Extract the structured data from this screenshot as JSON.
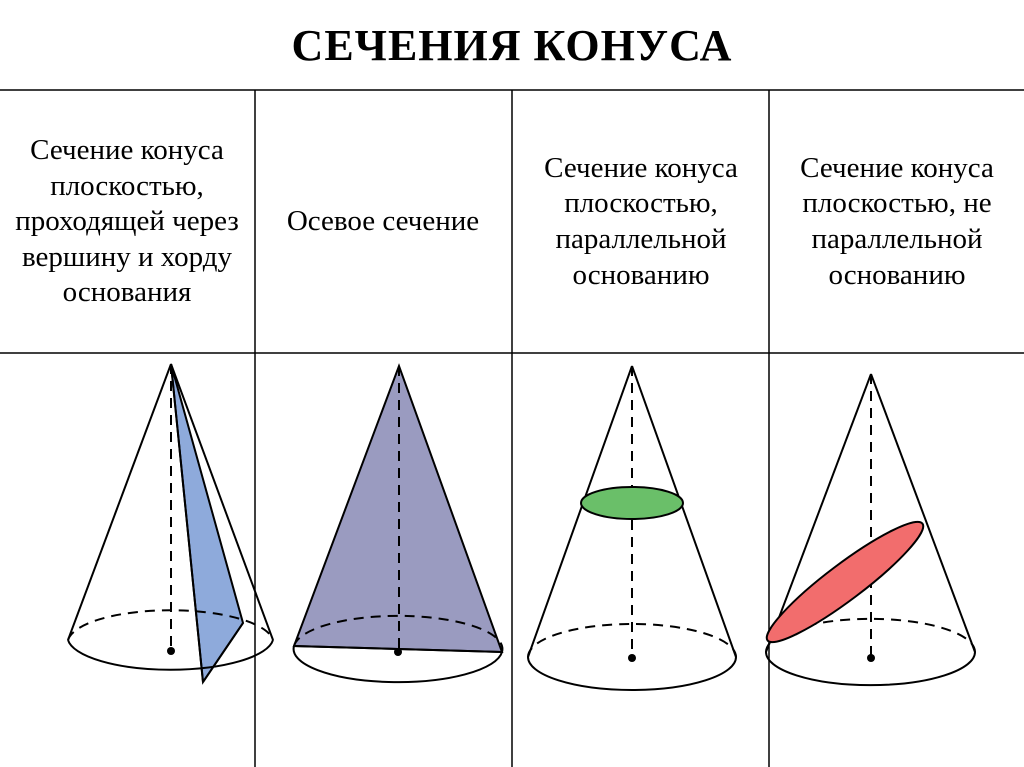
{
  "title": "СЕЧЕНИЯ КОНУСА",
  "columns": [
    {
      "label": "Сечение конуса плоскостью, проходящей через вершину и хорду основания",
      "section_color": "#8eaadb"
    },
    {
      "label": "Осевое сечение",
      "section_color": "#9a9bc0"
    },
    {
      "label": "Сечение конуса плоскостью, параллельной основанию",
      "section_color": "#6abf69"
    },
    {
      "label": "Сечение конуса плоскостью, не параллельной основанию",
      "section_color": "#f26d6d"
    }
  ]
}
